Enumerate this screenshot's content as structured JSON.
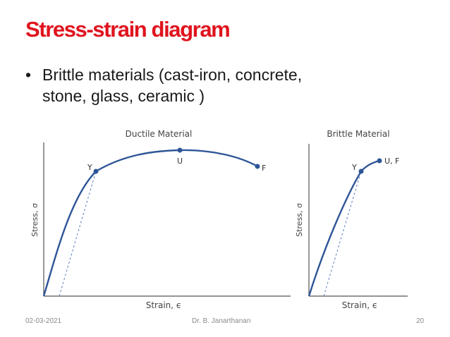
{
  "slide": {
    "title": "Stress-strain diagram",
    "bullet_lines": [
      "Brittle materials (cast-iron, concrete,",
      "stone, glass, ceramic )"
    ],
    "bullet_glyph": "•"
  },
  "ductile": {
    "title": "Ductile Material",
    "ylabel": "Stress, σ",
    "xlabel": "Strain, ϵ",
    "labels": {
      "yield": "Y",
      "ultimate": "U",
      "fracture": "F"
    }
  },
  "brittle": {
    "title": "Brittle Material",
    "ylabel": "Stress, σ",
    "xlabel": "Strain, ϵ",
    "labels": {
      "yield": "Y",
      "ultimate": "U, F"
    }
  },
  "footer": {
    "date": "02-03-2021",
    "author": "Dr. B. Janarthanan",
    "page": "20"
  },
  "colors": {
    "title": "#e0141e",
    "curve": "#2e5597",
    "axis": "#444444"
  }
}
